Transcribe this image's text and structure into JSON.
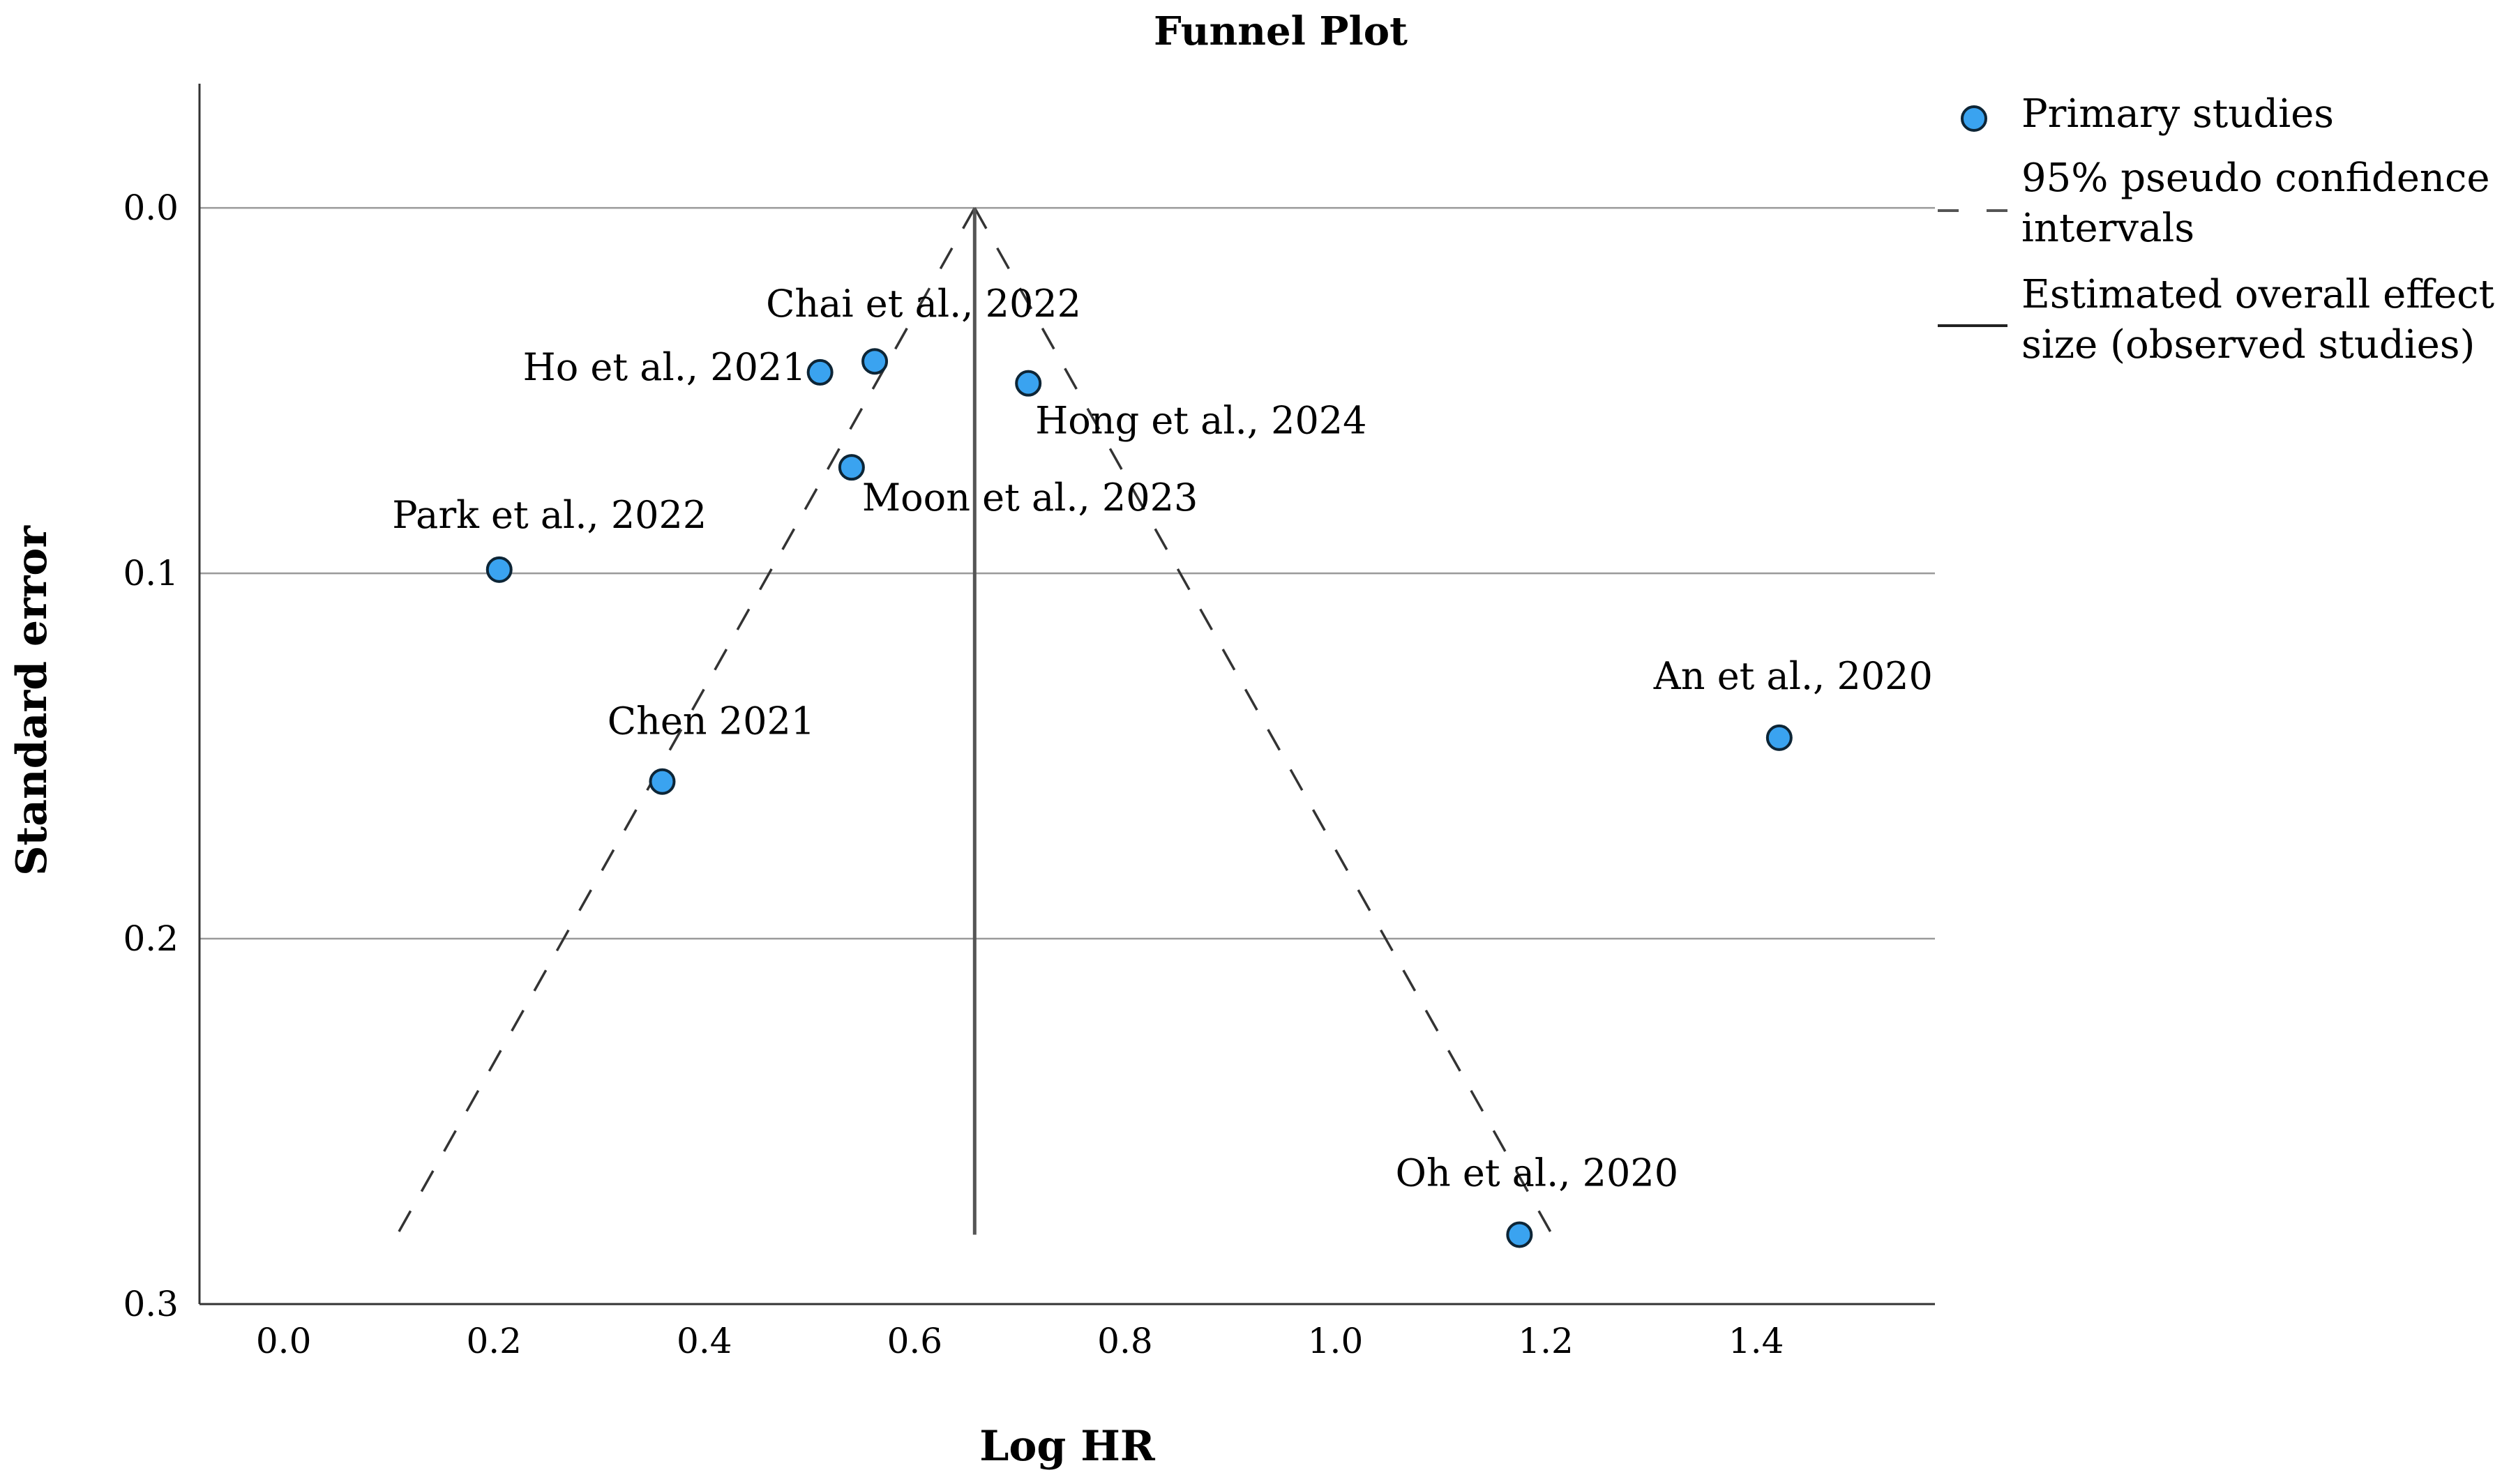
{
  "chart_data": {
    "type": "scatter",
    "title": "Funnel Plot",
    "xlabel": "Log HR",
    "ylabel": "Standard error",
    "xlim": [
      -0.08,
      1.57
    ],
    "ylim": [
      -0.034,
      0.3
    ],
    "y_inverted": true,
    "x_ticks": [
      0.0,
      0.2,
      0.4,
      0.6,
      0.8,
      1.0,
      1.2,
      1.4
    ],
    "x_tick_labels": [
      "0.0",
      "0.2",
      "0.4",
      "0.6",
      "0.8",
      "1.0",
      "1.2",
      "1.4"
    ],
    "y_ticks": [
      0.0,
      0.1,
      0.2,
      0.3
    ],
    "y_tick_labels": [
      "0.0",
      "0.1",
      "0.2",
      "0.3"
    ],
    "grid": "horizontal",
    "legend_position": "right",
    "legend": [
      {
        "kind": "marker",
        "lines": [
          "Primary studies"
        ]
      },
      {
        "kind": "dashed",
        "lines": [
          "95% pseudo confidence",
          "intervals"
        ]
      },
      {
        "kind": "solid",
        "lines": [
          "Estimated overall effect",
          "size (observed studies)"
        ]
      }
    ],
    "colors": {
      "marker_fill": "#3aa3f0",
      "marker_stroke": "#0d2536",
      "line": "#555555",
      "grid": "#9a9a9a"
    },
    "series": [
      {
        "name": "Primary studies",
        "points": [
          {
            "label": "Chai et al., 2022",
            "x": 0.562,
            "y": 0.042
          },
          {
            "label": "Ho et al., 2021",
            "x": 0.51,
            "y": 0.045
          },
          {
            "label": "Hong et al., 2024",
            "x": 0.708,
            "y": 0.048
          },
          {
            "label": "Moon et al., 2023",
            "x": 0.54,
            "y": 0.071
          },
          {
            "label": "Park et al., 2022",
            "x": 0.205,
            "y": 0.099
          },
          {
            "label": "An et al., 2020",
            "x": 1.422,
            "y": 0.145
          },
          {
            "label": "Chen 2021",
            "x": 0.36,
            "y": 0.157
          },
          {
            "label": "Oh et al., 2020",
            "x": 1.175,
            "y": 0.281
          }
        ]
      }
    ],
    "overall_effect": {
      "x": 0.657,
      "y_from": 0.0,
      "y_to": 0.281
    },
    "pseudo_ci": {
      "apex": {
        "x": 0.657,
        "y": 0.0
      },
      "left_end": {
        "x": 0.108,
        "y": 0.281
      },
      "right_end": {
        "x": 1.206,
        "y": 0.281
      }
    }
  }
}
